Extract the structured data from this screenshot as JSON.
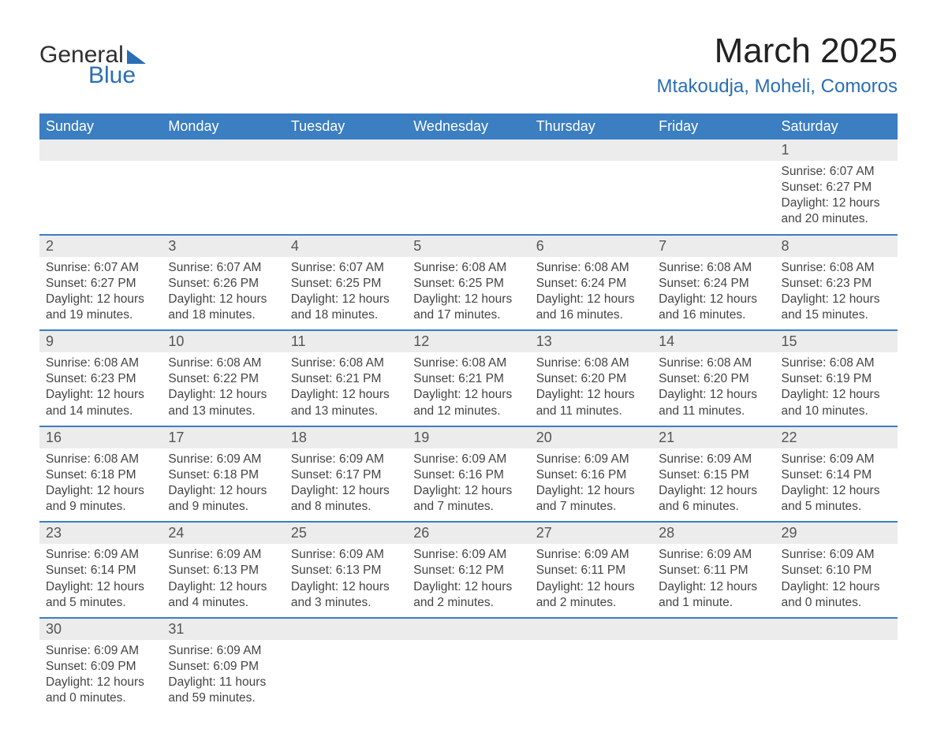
{
  "logo": {
    "word1": "General",
    "word2": "Blue"
  },
  "title": "March 2025",
  "location": "Mtakoudja, Moheli, Comoros",
  "columns": [
    "Sunday",
    "Monday",
    "Tuesday",
    "Wednesday",
    "Thursday",
    "Friday",
    "Saturday"
  ],
  "colors": {
    "header_bg": "#3b7ec2",
    "header_text": "#ffffff",
    "daynum_bg": "#ececec",
    "border": "#3b7ec2",
    "logo_blue": "#2a6eb6"
  },
  "weeks": [
    [
      null,
      null,
      null,
      null,
      null,
      null,
      {
        "n": "1",
        "sunrise": "Sunrise: 6:07 AM",
        "sunset": "Sunset: 6:27 PM",
        "d1": "Daylight: 12 hours",
        "d2": "and 20 minutes."
      }
    ],
    [
      {
        "n": "2",
        "sunrise": "Sunrise: 6:07 AM",
        "sunset": "Sunset: 6:27 PM",
        "d1": "Daylight: 12 hours",
        "d2": "and 19 minutes."
      },
      {
        "n": "3",
        "sunrise": "Sunrise: 6:07 AM",
        "sunset": "Sunset: 6:26 PM",
        "d1": "Daylight: 12 hours",
        "d2": "and 18 minutes."
      },
      {
        "n": "4",
        "sunrise": "Sunrise: 6:07 AM",
        "sunset": "Sunset: 6:25 PM",
        "d1": "Daylight: 12 hours",
        "d2": "and 18 minutes."
      },
      {
        "n": "5",
        "sunrise": "Sunrise: 6:08 AM",
        "sunset": "Sunset: 6:25 PM",
        "d1": "Daylight: 12 hours",
        "d2": "and 17 minutes."
      },
      {
        "n": "6",
        "sunrise": "Sunrise: 6:08 AM",
        "sunset": "Sunset: 6:24 PM",
        "d1": "Daylight: 12 hours",
        "d2": "and 16 minutes."
      },
      {
        "n": "7",
        "sunrise": "Sunrise: 6:08 AM",
        "sunset": "Sunset: 6:24 PM",
        "d1": "Daylight: 12 hours",
        "d2": "and 16 minutes."
      },
      {
        "n": "8",
        "sunrise": "Sunrise: 6:08 AM",
        "sunset": "Sunset: 6:23 PM",
        "d1": "Daylight: 12 hours",
        "d2": "and 15 minutes."
      }
    ],
    [
      {
        "n": "9",
        "sunrise": "Sunrise: 6:08 AM",
        "sunset": "Sunset: 6:23 PM",
        "d1": "Daylight: 12 hours",
        "d2": "and 14 minutes."
      },
      {
        "n": "10",
        "sunrise": "Sunrise: 6:08 AM",
        "sunset": "Sunset: 6:22 PM",
        "d1": "Daylight: 12 hours",
        "d2": "and 13 minutes."
      },
      {
        "n": "11",
        "sunrise": "Sunrise: 6:08 AM",
        "sunset": "Sunset: 6:21 PM",
        "d1": "Daylight: 12 hours",
        "d2": "and 13 minutes."
      },
      {
        "n": "12",
        "sunrise": "Sunrise: 6:08 AM",
        "sunset": "Sunset: 6:21 PM",
        "d1": "Daylight: 12 hours",
        "d2": "and 12 minutes."
      },
      {
        "n": "13",
        "sunrise": "Sunrise: 6:08 AM",
        "sunset": "Sunset: 6:20 PM",
        "d1": "Daylight: 12 hours",
        "d2": "and 11 minutes."
      },
      {
        "n": "14",
        "sunrise": "Sunrise: 6:08 AM",
        "sunset": "Sunset: 6:20 PM",
        "d1": "Daylight: 12 hours",
        "d2": "and 11 minutes."
      },
      {
        "n": "15",
        "sunrise": "Sunrise: 6:08 AM",
        "sunset": "Sunset: 6:19 PM",
        "d1": "Daylight: 12 hours",
        "d2": "and 10 minutes."
      }
    ],
    [
      {
        "n": "16",
        "sunrise": "Sunrise: 6:08 AM",
        "sunset": "Sunset: 6:18 PM",
        "d1": "Daylight: 12 hours",
        "d2": "and 9 minutes."
      },
      {
        "n": "17",
        "sunrise": "Sunrise: 6:09 AM",
        "sunset": "Sunset: 6:18 PM",
        "d1": "Daylight: 12 hours",
        "d2": "and 9 minutes."
      },
      {
        "n": "18",
        "sunrise": "Sunrise: 6:09 AM",
        "sunset": "Sunset: 6:17 PM",
        "d1": "Daylight: 12 hours",
        "d2": "and 8 minutes."
      },
      {
        "n": "19",
        "sunrise": "Sunrise: 6:09 AM",
        "sunset": "Sunset: 6:16 PM",
        "d1": "Daylight: 12 hours",
        "d2": "and 7 minutes."
      },
      {
        "n": "20",
        "sunrise": "Sunrise: 6:09 AM",
        "sunset": "Sunset: 6:16 PM",
        "d1": "Daylight: 12 hours",
        "d2": "and 7 minutes."
      },
      {
        "n": "21",
        "sunrise": "Sunrise: 6:09 AM",
        "sunset": "Sunset: 6:15 PM",
        "d1": "Daylight: 12 hours",
        "d2": "and 6 minutes."
      },
      {
        "n": "22",
        "sunrise": "Sunrise: 6:09 AM",
        "sunset": "Sunset: 6:14 PM",
        "d1": "Daylight: 12 hours",
        "d2": "and 5 minutes."
      }
    ],
    [
      {
        "n": "23",
        "sunrise": "Sunrise: 6:09 AM",
        "sunset": "Sunset: 6:14 PM",
        "d1": "Daylight: 12 hours",
        "d2": "and 5 minutes."
      },
      {
        "n": "24",
        "sunrise": "Sunrise: 6:09 AM",
        "sunset": "Sunset: 6:13 PM",
        "d1": "Daylight: 12 hours",
        "d2": "and 4 minutes."
      },
      {
        "n": "25",
        "sunrise": "Sunrise: 6:09 AM",
        "sunset": "Sunset: 6:13 PM",
        "d1": "Daylight: 12 hours",
        "d2": "and 3 minutes."
      },
      {
        "n": "26",
        "sunrise": "Sunrise: 6:09 AM",
        "sunset": "Sunset: 6:12 PM",
        "d1": "Daylight: 12 hours",
        "d2": "and 2 minutes."
      },
      {
        "n": "27",
        "sunrise": "Sunrise: 6:09 AM",
        "sunset": "Sunset: 6:11 PM",
        "d1": "Daylight: 12 hours",
        "d2": "and 2 minutes."
      },
      {
        "n": "28",
        "sunrise": "Sunrise: 6:09 AM",
        "sunset": "Sunset: 6:11 PM",
        "d1": "Daylight: 12 hours",
        "d2": "and 1 minute."
      },
      {
        "n": "29",
        "sunrise": "Sunrise: 6:09 AM",
        "sunset": "Sunset: 6:10 PM",
        "d1": "Daylight: 12 hours",
        "d2": "and 0 minutes."
      }
    ],
    [
      {
        "n": "30",
        "sunrise": "Sunrise: 6:09 AM",
        "sunset": "Sunset: 6:09 PM",
        "d1": "Daylight: 12 hours",
        "d2": "and 0 minutes."
      },
      {
        "n": "31",
        "sunrise": "Sunrise: 6:09 AM",
        "sunset": "Sunset: 6:09 PM",
        "d1": "Daylight: 11 hours",
        "d2": "and 59 minutes."
      },
      null,
      null,
      null,
      null,
      null
    ]
  ]
}
